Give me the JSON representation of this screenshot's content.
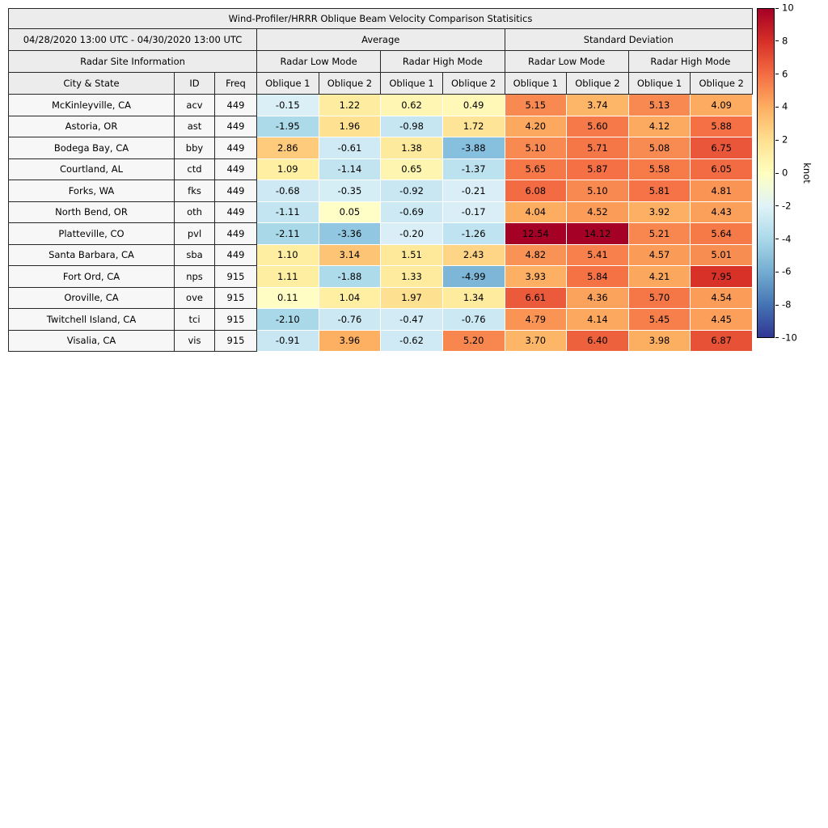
{
  "header": {
    "date_range": "04/28/2020 13:00 UTC - 04/30/2020 13:00 UTC",
    "group_average": "Average",
    "group_std": "Standard Deviation",
    "site_info": "Radar Site Information",
    "low_mode": "Radar Low Mode",
    "high_mode": "Radar High Mode",
    "columns": [
      "City & State",
      "ID",
      "Freq",
      "Oblique 1",
      "Oblique 2",
      "Oblique 1",
      "Oblique 2",
      "Oblique 1",
      "Oblique 2",
      "Oblique 1",
      "Oblique 2"
    ]
  },
  "chart_data": {
    "type": "heatmap",
    "title": "Wind-Profiler/HRRR Oblique Beam Velocity Comparison Statisitics",
    "value_columns": [
      "Average Radar Low Mode Oblique 1",
      "Average Radar Low Mode Oblique 2",
      "Average Radar High Mode Oblique 1",
      "Average Radar High Mode Oblique 2",
      "Std Radar Low Mode Oblique 1",
      "Std Radar Low Mode Oblique 2",
      "Std Radar High Mode Oblique 1",
      "Std Radar High Mode Oblique 2"
    ],
    "rows": [
      {
        "city": "McKinleyville, CA",
        "id": "acv",
        "freq": "449",
        "values": [
          -0.15,
          1.22,
          0.62,
          0.49,
          5.15,
          3.74,
          5.13,
          4.09
        ]
      },
      {
        "city": "Astoria, OR",
        "id": "ast",
        "freq": "449",
        "values": [
          -1.95,
          1.96,
          -0.98,
          1.72,
          4.2,
          5.6,
          4.12,
          5.88
        ]
      },
      {
        "city": "Bodega Bay, CA",
        "id": "bby",
        "freq": "449",
        "values": [
          2.86,
          -0.61,
          1.38,
          -3.88,
          5.1,
          5.71,
          5.08,
          6.75
        ]
      },
      {
        "city": "Courtland, AL",
        "id": "ctd",
        "freq": "449",
        "values": [
          1.09,
          -1.14,
          0.65,
          -1.37,
          5.65,
          5.87,
          5.58,
          6.05
        ]
      },
      {
        "city": "Forks, WA",
        "id": "fks",
        "freq": "449",
        "values": [
          -0.68,
          -0.35,
          -0.92,
          -0.21,
          6.08,
          5.1,
          5.81,
          4.81
        ]
      },
      {
        "city": "North Bend, OR",
        "id": "oth",
        "freq": "449",
        "values": [
          -1.11,
          0.05,
          -0.69,
          -0.17,
          4.04,
          4.52,
          3.92,
          4.43
        ]
      },
      {
        "city": "Platteville, CO",
        "id": "pvl",
        "freq": "449",
        "values": [
          -2.11,
          -3.36,
          -0.2,
          -1.26,
          12.54,
          14.12,
          5.21,
          5.64
        ]
      },
      {
        "city": "Santa Barbara, CA",
        "id": "sba",
        "freq": "449",
        "values": [
          1.1,
          3.14,
          1.51,
          2.43,
          4.82,
          5.41,
          4.57,
          5.01
        ]
      },
      {
        "city": "Fort Ord, CA",
        "id": "nps",
        "freq": "915",
        "values": [
          1.11,
          -1.88,
          1.33,
          -4.99,
          3.93,
          5.84,
          4.21,
          7.95
        ]
      },
      {
        "city": "Oroville, CA",
        "id": "ove",
        "freq": "915",
        "values": [
          0.11,
          1.04,
          1.97,
          1.34,
          6.61,
          4.36,
          5.7,
          4.54
        ]
      },
      {
        "city": "Twitchell Island, CA",
        "id": "tci",
        "freq": "915",
        "values": [
          -2.1,
          -0.76,
          -0.47,
          -0.76,
          4.79,
          4.14,
          5.45,
          4.45
        ]
      },
      {
        "city": "Visalia, CA",
        "id": "vis",
        "freq": "915",
        "values": [
          -0.91,
          3.96,
          -0.62,
          5.2,
          3.7,
          6.4,
          3.98,
          6.87
        ]
      }
    ],
    "cell_colormap": [
      {
        "v": -10,
        "c": "#313695"
      },
      {
        "v": -8,
        "c": "#4575b4"
      },
      {
        "v": -6,
        "c": "#74add1"
      },
      {
        "v": -4,
        "c": "#85bedd"
      },
      {
        "v": -2,
        "c": "#abd9e9"
      },
      {
        "v": -1,
        "c": "#c6e6f2"
      },
      {
        "v": -0.02,
        "c": "#ddf0f7"
      },
      {
        "v": 0,
        "c": "#ffffc8"
      },
      {
        "v": 1,
        "c": "#fef0a4"
      },
      {
        "v": 2,
        "c": "#fee090"
      },
      {
        "v": 4,
        "c": "#fdae61"
      },
      {
        "v": 6,
        "c": "#f46d43"
      },
      {
        "v": 8,
        "c": "#d73027"
      },
      {
        "v": 10,
        "c": "#a50026"
      }
    ],
    "colorbar": {
      "label": "knot",
      "min": -10,
      "max": 10,
      "ticks": [
        10,
        8,
        6,
        4,
        2,
        0,
        -2,
        -4,
        -6,
        -8,
        -10
      ],
      "colormap_name": "RdYlBu_r",
      "gradient": [
        {
          "p": 0,
          "c": "#313695"
        },
        {
          "p": 10,
          "c": "#4575b4"
        },
        {
          "p": 20,
          "c": "#74add1"
        },
        {
          "p": 30,
          "c": "#abd9e9"
        },
        {
          "p": 40,
          "c": "#e0f3f8"
        },
        {
          "p": 50,
          "c": "#ffffbf"
        },
        {
          "p": 60,
          "c": "#fee090"
        },
        {
          "p": 70,
          "c": "#fdae61"
        },
        {
          "p": 80,
          "c": "#f46d43"
        },
        {
          "p": 90,
          "c": "#d73027"
        },
        {
          "p": 100,
          "c": "#a50026"
        }
      ]
    }
  }
}
